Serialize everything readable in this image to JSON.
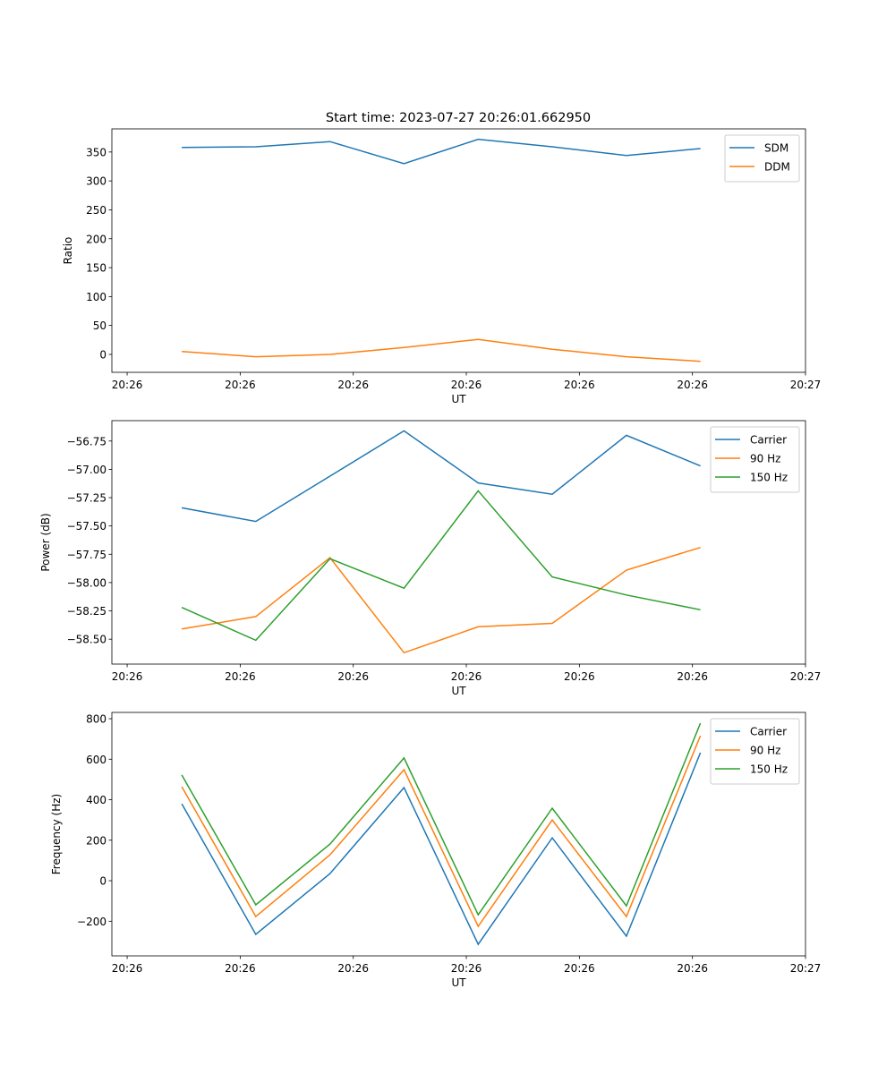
{
  "title": "Start time: 2023-07-27 20:26:01.662950",
  "chart_data": [
    {
      "type": "line",
      "xlabel": "UT",
      "ylabel": "Ratio",
      "x_unit": "seconds after 20:26:00",
      "x": [
        4.83,
        11.38,
        17.94,
        24.49,
        31.05,
        37.6,
        44.16,
        50.71
      ],
      "xlim": [
        -1.35,
        60
      ],
      "xticks": [
        0,
        10,
        20,
        30,
        40,
        50,
        60
      ],
      "xtick_labels": [
        "20:26",
        "20:26",
        "20:26",
        "20:26",
        "20:26",
        "20:26",
        "20:27"
      ],
      "ylim": [
        -31,
        390
      ],
      "yticks": [
        0,
        50,
        100,
        150,
        200,
        250,
        300,
        350
      ],
      "ytick_labels": [
        "0",
        "50",
        "100",
        "150",
        "200",
        "250",
        "300",
        "350"
      ],
      "legend": "top-right",
      "series": [
        {
          "name": "SDM",
          "color": "#1f77b4",
          "values": [
            358,
            359,
            368,
            330,
            372,
            359,
            344,
            356
          ]
        },
        {
          "name": "DDM",
          "color": "#ff7f0e",
          "values": [
            5,
            -4,
            0,
            12,
            26,
            9,
            -4,
            -12
          ]
        }
      ]
    },
    {
      "type": "line",
      "xlabel": "UT",
      "ylabel": "Power (dB)",
      "x_unit": "seconds after 20:26:00",
      "x": [
        4.83,
        11.38,
        17.94,
        24.49,
        31.05,
        37.6,
        44.16,
        50.71
      ],
      "xlim": [
        -1.35,
        60
      ],
      "xticks": [
        0,
        10,
        20,
        30,
        40,
        50,
        60
      ],
      "xtick_labels": [
        "20:26",
        "20:26",
        "20:26",
        "20:26",
        "20:26",
        "20:26",
        "20:27"
      ],
      "ylim": [
        -58.72,
        -56.57
      ],
      "yticks": [
        -58.5,
        -58.25,
        -58.0,
        -57.75,
        -57.5,
        -57.25,
        -57.0,
        -56.75
      ],
      "ytick_labels": [
        "−58.50",
        "−58.25",
        "−58.00",
        "−57.75",
        "−57.50",
        "−57.25",
        "−57.00",
        "−56.75"
      ],
      "legend": "top-right",
      "series": [
        {
          "name": "Carrier",
          "color": "#1f77b4",
          "values": [
            -57.34,
            -57.46,
            -57.06,
            -56.66,
            -57.12,
            -57.22,
            -56.7,
            -56.97
          ]
        },
        {
          "name": "90 Hz",
          "color": "#ff7f0e",
          "values": [
            -58.41,
            -58.3,
            -57.78,
            -58.62,
            -58.39,
            -58.36,
            -57.89,
            -57.69
          ]
        },
        {
          "name": "150 Hz",
          "color": "#2ca02c",
          "values": [
            -58.22,
            -58.51,
            -57.79,
            -58.05,
            -57.19,
            -57.95,
            -58.11,
            -58.24
          ]
        }
      ]
    },
    {
      "type": "line",
      "xlabel": "UT",
      "ylabel": "Frequency (Hz)",
      "x_unit": "seconds after 20:26:00",
      "x": [
        4.83,
        11.38,
        17.94,
        24.49,
        31.05,
        37.6,
        44.16,
        50.71
      ],
      "xlim": [
        -1.35,
        60
      ],
      "xticks": [
        0,
        10,
        20,
        30,
        40,
        50,
        60
      ],
      "xtick_labels": [
        "20:26",
        "20:26",
        "20:26",
        "20:26",
        "20:26",
        "20:26",
        "20:27"
      ],
      "ylim": [
        -371,
        831
      ],
      "yticks": [
        -200,
        0,
        200,
        400,
        600,
        800
      ],
      "ytick_labels": [
        "−200",
        "0",
        "200",
        "400",
        "600",
        "800"
      ],
      "legend": "top-right",
      "series": [
        {
          "name": "Carrier",
          "color": "#1f77b4",
          "values": [
            380,
            -265,
            35,
            460,
            -314,
            212,
            -274,
            632
          ]
        },
        {
          "name": "90 Hz",
          "color": "#ff7f0e",
          "values": [
            464,
            -177,
            128,
            548,
            -225,
            300,
            -177,
            716
          ]
        },
        {
          "name": "150 Hz",
          "color": "#2ca02c",
          "values": [
            522,
            -119,
            181,
            606,
            -168,
            358,
            -124,
            778
          ]
        }
      ]
    }
  ]
}
